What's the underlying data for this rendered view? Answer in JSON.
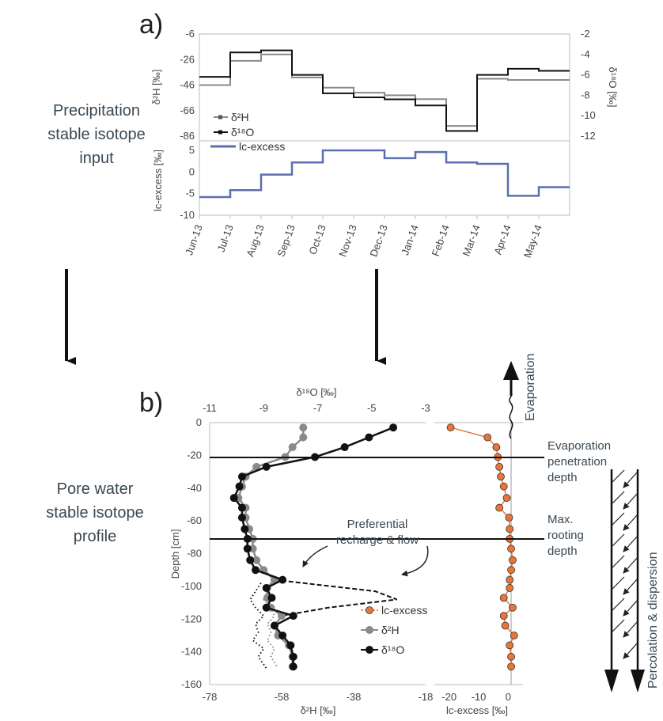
{
  "labels": {
    "panel_a": "a)",
    "panel_b": "b)",
    "precip_input": [
      "Precipitation",
      "stable isotope",
      "input"
    ],
    "pore_profile": [
      "Pore water",
      "stable isotope",
      "profile"
    ],
    "evaporation": "Evaporation",
    "evap_depth": [
      "Evaporation",
      "penetration",
      "depth"
    ],
    "rooting_depth": [
      "Max.",
      "rooting",
      "depth"
    ],
    "pref_flow": [
      "Preferential",
      "recharge & flow"
    ],
    "percolation": "Percolation & dispersion"
  },
  "colors": {
    "d2h": "#8a8a8a",
    "d18o": "#111111",
    "lcx_a": "#5b6fb0",
    "lcx_b": "#e8763a",
    "text": "#3a4852"
  },
  "chart_data": [
    {
      "type": "line",
      "id": "a-top",
      "x": [
        "Jun-13",
        "Jul-13",
        "Aug-13",
        "Sep-13",
        "Oct-13",
        "Nov-13",
        "Dec-13",
        "Jan-14",
        "Feb-14",
        "Mar-14",
        "Apr-14",
        "May-14"
      ],
      "ylabel": "δ²H [‰]",
      "y2label": "δ¹⁸O [‰]",
      "ylim": [
        -86,
        -6
      ],
      "y2lim": [
        -12,
        -2
      ],
      "yticks": [
        "-6",
        "-26",
        "-46",
        "-66",
        "-86"
      ],
      "y2ticks": [
        "-2",
        "-4",
        "-6",
        "-8",
        "-10",
        "-12"
      ],
      "series": [
        {
          "name": "δ²H",
          "axis": "left",
          "x": [
            0,
            1,
            1,
            2,
            2,
            3,
            3,
            4,
            4,
            5,
            5,
            6,
            6,
            7,
            7,
            8,
            8,
            9,
            9,
            10,
            10,
            11,
            11,
            12
          ],
          "y": [
            -46,
            -46,
            -27,
            -27,
            -22,
            -22,
            -40,
            -40,
            -48,
            -48,
            -52,
            -52,
            -54,
            -54,
            -57,
            -57,
            -78,
            -78,
            -41,
            -41,
            -42,
            -42,
            -42,
            -42
          ]
        },
        {
          "name": "δ¹⁸O",
          "axis": "right",
          "x": [
            0,
            1,
            1,
            2,
            2,
            3,
            3,
            4,
            4,
            5,
            5,
            6,
            6,
            7,
            7,
            8,
            8,
            9,
            9,
            10,
            10,
            11,
            11,
            12
          ],
          "y": [
            -6.2,
            -6.2,
            -3.8,
            -3.8,
            -3.6,
            -3.6,
            -6.0,
            -6.0,
            -7.8,
            -7.8,
            -8.2,
            -8.2,
            -8.4,
            -8.4,
            -9.0,
            -9.0,
            -11.5,
            -11.5,
            -6.0,
            -6.0,
            -5.4,
            -5.4,
            -5.6,
            -5.6
          ]
        }
      ]
    },
    {
      "type": "line",
      "id": "a-bottom",
      "x": [
        "Jun-13",
        "Jul-13",
        "Aug-13",
        "Sep-13",
        "Oct-13",
        "Nov-13",
        "Dec-13",
        "Jan-14",
        "Feb-14",
        "Mar-14",
        "Apr-14",
        "May-14"
      ],
      "ylabel": "lc-excess [‰]",
      "ylim": [
        -10,
        5
      ],
      "yticks": [
        "5",
        "0",
        "-5",
        "-10"
      ],
      "series": [
        {
          "name": "lc-excess",
          "x": [
            0,
            1,
            1,
            2,
            2,
            3,
            3,
            4,
            4,
            5,
            5,
            6,
            6,
            7,
            7,
            8,
            8,
            9,
            9,
            10,
            10,
            11,
            11,
            12
          ],
          "y": [
            -5.8,
            -5.8,
            -4.2,
            -4.2,
            -0.6,
            -0.6,
            2.2,
            2.2,
            5.0,
            5.0,
            5.0,
            5.0,
            3.2,
            3.2,
            4.6,
            4.6,
            2.2,
            2.2,
            1.9,
            1.9,
            -5.5,
            -5.5,
            -3.5,
            -3.5
          ]
        }
      ]
    },
    {
      "type": "line",
      "id": "b-isotopes",
      "ylabel": "Depth [cm]",
      "xlabel": "δ²H [‰]",
      "x2label": "δ¹⁸O [‰]",
      "ylim": [
        -160,
        0
      ],
      "xlim": [
        -78,
        -18
      ],
      "x2lim": [
        -11,
        -3
      ],
      "yticks": [
        "0",
        "-20",
        "-40",
        "-60",
        "-80",
        "-100",
        "-120",
        "-140",
        "-160"
      ],
      "xticks": [
        "-78",
        "-58",
        "-38",
        "-18"
      ],
      "x2ticks": [
        "-11",
        "-9",
        "-7",
        "-5",
        "-3"
      ],
      "series": [
        {
          "name": "δ²H",
          "marker": "circle",
          "depth": [
            -3,
            -9,
            -15,
            -21,
            -27,
            -33,
            -39,
            -46,
            -52,
            -58,
            -65,
            -71,
            -77,
            -84,
            -90,
            -96,
            -101,
            -107,
            -113,
            -118,
            -124,
            -130,
            -136,
            -143,
            -149
          ],
          "values": [
            -52,
            -52,
            -55,
            -57,
            -65,
            -68,
            -69,
            -70,
            -68,
            -68,
            -67,
            -66,
            -66,
            -65,
            -63,
            -60,
            -62,
            -62,
            -61,
            -58,
            -60,
            -59,
            -56,
            -55,
            -55
          ]
        },
        {
          "name": "δ¹⁸O",
          "marker": "circle",
          "depth": [
            -3,
            -9,
            -15,
            -21,
            -27,
            -33,
            -39,
            -46,
            -52,
            -58,
            -65,
            -71,
            -77,
            -84,
            -90,
            -96,
            -101,
            -107,
            -113,
            -118,
            -124,
            -130,
            -136,
            -143,
            -149
          ],
          "values": [
            -4.2,
            -5.1,
            -6.0,
            -7.1,
            -8.9,
            -9.8,
            -9.9,
            -10.1,
            -9.8,
            -9.8,
            -9.7,
            -9.6,
            -9.6,
            -9.5,
            -9.3,
            -8.3,
            -8.9,
            -8.7,
            -8.9,
            -7.9,
            -8.6,
            -8.3,
            -8.0,
            -7.9,
            -7.9
          ]
        },
        {
          "name": "δ²H dotted",
          "depth": [
            -98,
            -103,
            -108,
            -113,
            -118,
            -123,
            -128,
            -133,
            -138,
            -143,
            -150
          ],
          "values": [
            -61,
            -62,
            -63,
            -61,
            -60,
            -62,
            -61,
            -62,
            -60,
            -61,
            -59
          ]
        },
        {
          "name": "δ¹⁸O dotted",
          "depth": [
            -98,
            -103,
            -108,
            -113,
            -118,
            -123,
            -128,
            -133,
            -138,
            -143,
            -150
          ],
          "values": [
            -9.1,
            -9.3,
            -9.5,
            -9.3,
            -9.0,
            -9.3,
            -9.2,
            -9.4,
            -9.0,
            -9.2,
            -8.9
          ]
        },
        {
          "name": "preferential",
          "depth": [
            -96,
            -103,
            -108,
            -113,
            -118
          ],
          "values": [
            -60,
            -32,
            -26,
            -45,
            -58
          ]
        }
      ]
    },
    {
      "type": "scatter",
      "id": "b-lcx",
      "xlabel": "lc-excess [‰]",
      "xlim": [
        -25,
        5
      ],
      "xticks": [
        "-20",
        "-10",
        "0"
      ],
      "series": [
        {
          "name": "lc-excess",
          "marker": "circle",
          "depth": [
            -3,
            -9,
            -15,
            -21,
            -27,
            -33,
            -39,
            -46,
            -52,
            -58,
            -65,
            -71,
            -77,
            -84,
            -90,
            -96,
            -101,
            -107,
            -113,
            -118,
            -124,
            -130,
            -136,
            -143,
            -149
          ],
          "values": [
            -19.5,
            -7.0,
            -4.0,
            -3.5,
            -3.0,
            -2.5,
            -1.5,
            -0.5,
            -3.0,
            0.3,
            0.5,
            0.5,
            1.0,
            1.5,
            1.0,
            0.5,
            0.5,
            -1.5,
            1.5,
            -1.5,
            -1.0,
            2.0,
            0.5,
            1.0,
            1.0
          ]
        }
      ]
    }
  ]
}
